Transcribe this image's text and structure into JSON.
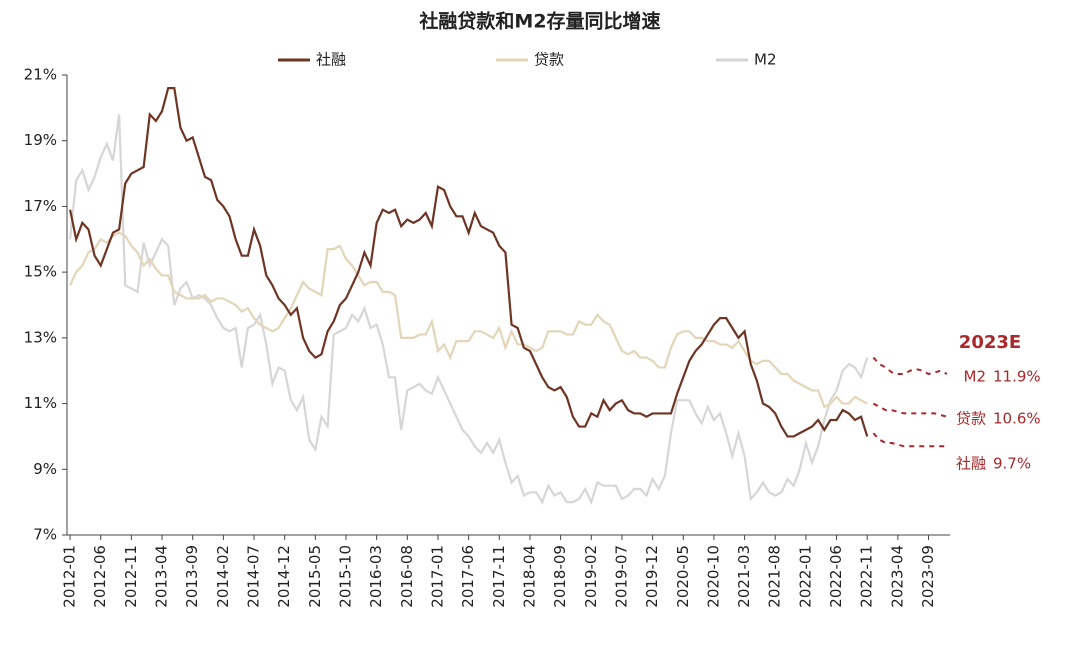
{
  "chart_data": {
    "type": "line",
    "title": "社融贷款和M2存量同比增速",
    "categories": [
      "2012-01",
      null,
      null,
      null,
      null,
      "2012-06",
      null,
      null,
      null,
      null,
      "2012-11",
      null,
      null,
      null,
      null,
      "2013-04",
      null,
      null,
      null,
      null,
      "2013-09",
      null,
      null,
      null,
      null,
      "2014-02",
      null,
      null,
      null,
      null,
      "2014-07",
      null,
      null,
      null,
      null,
      "2014-12",
      null,
      null,
      null,
      null,
      "2015-05",
      null,
      null,
      null,
      null,
      "2015-10",
      null,
      null,
      null,
      null,
      "2016-03",
      null,
      null,
      null,
      null,
      "2016-08",
      null,
      null,
      null,
      null,
      "2017-01",
      null,
      null,
      null,
      null,
      "2017-06",
      null,
      null,
      null,
      null,
      "2017-11",
      null,
      null,
      null,
      null,
      "2018-04",
      null,
      null,
      null,
      null,
      "2018-09",
      null,
      null,
      null,
      null,
      "2019-02",
      null,
      null,
      null,
      null,
      "2019-07",
      null,
      null,
      null,
      null,
      "2019-12",
      null,
      null,
      null,
      null,
      "2020-05",
      null,
      null,
      null,
      null,
      "2020-10",
      null,
      null,
      null,
      null,
      "2021-03",
      null,
      null,
      null,
      null,
      "2021-08",
      null,
      null,
      null,
      null,
      "2022-01",
      null,
      null,
      null,
      null,
      "2022-06",
      null,
      null,
      null,
      null,
      "2022-11",
      null,
      null,
      null,
      null,
      "2023-04",
      null,
      null,
      null,
      null,
      "2023-09",
      null,
      null,
      null
    ],
    "ylim": [
      7,
      21
    ],
    "yticks": [
      {
        "value": 7,
        "label": "7%"
      },
      {
        "value": 9,
        "label": "9%"
      },
      {
        "value": 11,
        "label": "11%"
      },
      {
        "value": 13,
        "label": "13%"
      },
      {
        "value": 15,
        "label": "15%"
      },
      {
        "value": 17,
        "label": "17%"
      },
      {
        "value": 19,
        "label": "19%"
      },
      {
        "value": 21,
        "label": "21%"
      }
    ],
    "forecast_label": "2023E",
    "forecast_color": "#a8282b",
    "series": [
      {
        "name": "社融",
        "color": "#6e3424",
        "end_label": "9.7%",
        "values": [
          16.9,
          16.0,
          16.5,
          16.3,
          15.5,
          15.2,
          15.7,
          16.2,
          16.3,
          17.7,
          18.0,
          18.1,
          18.2,
          19.8,
          19.6,
          19.9,
          20.6,
          20.6,
          19.4,
          19.0,
          19.1,
          18.5,
          17.9,
          17.8,
          17.2,
          17.0,
          16.7,
          16.0,
          15.5,
          15.5,
          16.3,
          15.8,
          14.9,
          14.6,
          14.2,
          14.0,
          13.7,
          13.9,
          13.0,
          12.6,
          12.4,
          12.5,
          13.2,
          13.5,
          14.0,
          14.2,
          14.6,
          15.0,
          15.6,
          15.2,
          16.5,
          16.9,
          16.8,
          16.9,
          16.4,
          16.6,
          16.5,
          16.6,
          16.8,
          16.4,
          17.6,
          17.5,
          17.0,
          16.7,
          16.7,
          16.2,
          16.8,
          16.4,
          16.3,
          16.2,
          15.8,
          15.6,
          13.4,
          13.3,
          12.7,
          12.6,
          12.2,
          11.8,
          11.5,
          11.4,
          11.5,
          11.2,
          10.6,
          10.3,
          10.3,
          10.7,
          10.6,
          11.1,
          10.8,
          11.0,
          11.1,
          10.8,
          10.7,
          10.7,
          10.6,
          10.7,
          10.7,
          10.7,
          10.7,
          11.3,
          11.8,
          12.3,
          12.6,
          12.8,
          13.1,
          13.4,
          13.6,
          13.6,
          13.3,
          13.0,
          13.2,
          12.2,
          11.7,
          11.0,
          10.9,
          10.7,
          10.3,
          10.0,
          10.0,
          10.1,
          10.2,
          10.3,
          10.5,
          10.2,
          10.5,
          10.5,
          10.8,
          10.7,
          10.5,
          10.6,
          10.0,
          null,
          null,
          null,
          null,
          null,
          null,
          null,
          null,
          null,
          null,
          null,
          null,
          null
        ],
        "forecast": [
          null,
          null,
          null,
          null,
          null,
          null,
          null,
          null,
          null,
          null,
          null,
          null,
          null,
          null,
          null,
          null,
          null,
          null,
          null,
          null,
          null,
          null,
          null,
          null,
          null,
          null,
          null,
          null,
          null,
          null,
          null,
          null,
          null,
          null,
          null,
          null,
          null,
          null,
          null,
          null,
          null,
          null,
          null,
          null,
          null,
          null,
          null,
          null,
          null,
          null,
          null,
          null,
          null,
          null,
          null,
          null,
          null,
          null,
          null,
          null,
          null,
          null,
          null,
          null,
          null,
          null,
          null,
          null,
          null,
          null,
          null,
          null,
          null,
          null,
          null,
          null,
          null,
          null,
          null,
          null,
          null,
          null,
          null,
          null,
          null,
          null,
          null,
          null,
          null,
          null,
          null,
          null,
          null,
          null,
          null,
          null,
          null,
          null,
          null,
          null,
          null,
          null,
          null,
          null,
          null,
          null,
          null,
          null,
          null,
          null,
          null,
          null,
          null,
          null,
          null,
          null,
          null,
          null,
          null,
          null,
          null,
          null,
          null,
          null,
          null,
          null,
          null,
          null,
          null,
          null,
          null,
          10.1,
          9.9,
          9.8,
          9.8,
          9.75,
          9.7,
          9.7,
          9.7,
          9.7,
          9.7,
          9.7,
          9.7,
          9.7
        ]
      },
      {
        "name": "贷款",
        "color": "#e3d5b8",
        "end_label": "10.6%",
        "values": [
          14.6,
          15.0,
          15.2,
          15.6,
          15.7,
          16.0,
          15.9,
          16.1,
          16.2,
          16.1,
          15.8,
          15.6,
          15.2,
          15.4,
          15.1,
          14.9,
          14.9,
          14.4,
          14.3,
          14.2,
          14.2,
          14.2,
          14.3,
          14.1,
          14.2,
          14.2,
          14.1,
          14.0,
          13.8,
          13.9,
          13.6,
          13.4,
          13.3,
          13.2,
          13.3,
          13.6,
          13.9,
          14.3,
          14.7,
          14.5,
          14.4,
          14.3,
          15.7,
          15.7,
          15.8,
          15.4,
          15.2,
          14.9,
          14.6,
          14.7,
          14.7,
          14.4,
          14.4,
          14.3,
          13.0,
          13.0,
          13.0,
          13.1,
          13.1,
          13.5,
          12.6,
          12.8,
          12.4,
          12.9,
          12.9,
          12.9,
          13.2,
          13.2,
          13.1,
          13.0,
          13.3,
          12.7,
          13.2,
          12.8,
          12.8,
          12.7,
          12.6,
          12.7,
          13.2,
          13.2,
          13.2,
          13.1,
          13.1,
          13.5,
          13.4,
          13.4,
          13.7,
          13.5,
          13.4,
          13.0,
          12.6,
          12.5,
          12.6,
          12.4,
          12.4,
          12.3,
          12.1,
          12.1,
          12.7,
          13.1,
          13.2,
          13.2,
          13.0,
          13.0,
          12.9,
          12.9,
          12.8,
          12.8,
          12.7,
          12.9,
          12.6,
          12.3,
          12.2,
          12.3,
          12.3,
          12.1,
          11.9,
          11.9,
          11.7,
          11.6,
          11.5,
          11.4,
          11.4,
          10.9,
          11.0,
          11.2,
          11.0,
          11.0,
          11.2,
          11.1,
          11.0,
          null,
          null,
          null,
          null,
          null,
          null,
          null,
          null,
          null,
          null,
          null,
          null,
          null
        ],
        "forecast": [
          null,
          null,
          null,
          null,
          null,
          null,
          null,
          null,
          null,
          null,
          null,
          null,
          null,
          null,
          null,
          null,
          null,
          null,
          null,
          null,
          null,
          null,
          null,
          null,
          null,
          null,
          null,
          null,
          null,
          null,
          null,
          null,
          null,
          null,
          null,
          null,
          null,
          null,
          null,
          null,
          null,
          null,
          null,
          null,
          null,
          null,
          null,
          null,
          null,
          null,
          null,
          null,
          null,
          null,
          null,
          null,
          null,
          null,
          null,
          null,
          null,
          null,
          null,
          null,
          null,
          null,
          null,
          null,
          null,
          null,
          null,
          null,
          null,
          null,
          null,
          null,
          null,
          null,
          null,
          null,
          null,
          null,
          null,
          null,
          null,
          null,
          null,
          null,
          null,
          null,
          null,
          null,
          null,
          null,
          null,
          null,
          null,
          null,
          null,
          null,
          null,
          null,
          null,
          null,
          null,
          null,
          null,
          null,
          null,
          null,
          null,
          null,
          null,
          null,
          null,
          null,
          null,
          null,
          null,
          null,
          null,
          null,
          null,
          null,
          null,
          null,
          null,
          null,
          null,
          null,
          null,
          11.0,
          10.9,
          10.8,
          10.8,
          10.75,
          10.7,
          10.7,
          10.7,
          10.7,
          10.7,
          10.7,
          10.65,
          10.6
        ]
      },
      {
        "name": "M2",
        "color": "#d6d6d6",
        "end_label": "11.9%",
        "values": [
          16.0,
          17.8,
          18.1,
          17.5,
          17.9,
          18.5,
          18.9,
          18.4,
          19.8,
          14.6,
          14.5,
          14.4,
          15.9,
          15.2,
          15.6,
          16.0,
          15.8,
          14.0,
          14.5,
          14.7,
          14.2,
          14.3,
          14.2,
          14.0,
          13.6,
          13.3,
          13.2,
          13.3,
          12.1,
          13.3,
          13.4,
          13.7,
          12.8,
          11.6,
          12.1,
          12.0,
          11.1,
          10.8,
          11.2,
          9.9,
          9.6,
          10.6,
          10.3,
          13.1,
          13.2,
          13.3,
          13.7,
          13.5,
          13.9,
          13.3,
          13.4,
          12.8,
          11.8,
          11.8,
          10.2,
          11.4,
          11.5,
          11.6,
          11.4,
          11.3,
          11.8,
          11.4,
          11.0,
          10.6,
          10.2,
          10.0,
          9.7,
          9.5,
          9.8,
          9.5,
          9.9,
          9.2,
          8.6,
          8.8,
          8.2,
          8.3,
          8.3,
          8.0,
          8.5,
          8.2,
          8.3,
          8.0,
          8.0,
          8.1,
          8.4,
          8.0,
          8.6,
          8.5,
          8.5,
          8.5,
          8.1,
          8.2,
          8.4,
          8.4,
          8.2,
          8.7,
          8.4,
          8.8,
          10.1,
          11.1,
          11.1,
          11.1,
          10.7,
          10.4,
          10.9,
          10.5,
          10.7,
          10.1,
          9.4,
          10.1,
          9.4,
          8.1,
          8.3,
          8.6,
          8.3,
          8.2,
          8.3,
          8.7,
          8.5,
          9.0,
          9.8,
          9.2,
          9.7,
          10.5,
          11.1,
          11.4,
          12.0,
          12.2,
          12.1,
          11.8,
          12.4,
          null,
          null,
          null,
          null,
          null,
          null,
          null,
          null,
          null,
          null,
          null,
          null,
          null
        ],
        "forecast": [
          null,
          null,
          null,
          null,
          null,
          null,
          null,
          null,
          null,
          null,
          null,
          null,
          null,
          null,
          null,
          null,
          null,
          null,
          null,
          null,
          null,
          null,
          null,
          null,
          null,
          null,
          null,
          null,
          null,
          null,
          null,
          null,
          null,
          null,
          null,
          null,
          null,
          null,
          null,
          null,
          null,
          null,
          null,
          null,
          null,
          null,
          null,
          null,
          null,
          null,
          null,
          null,
          null,
          null,
          null,
          null,
          null,
          null,
          null,
          null,
          null,
          null,
          null,
          null,
          null,
          null,
          null,
          null,
          null,
          null,
          null,
          null,
          null,
          null,
          null,
          null,
          null,
          null,
          null,
          null,
          null,
          null,
          null,
          null,
          null,
          null,
          null,
          null,
          null,
          null,
          null,
          null,
          null,
          null,
          null,
          null,
          null,
          null,
          null,
          null,
          null,
          null,
          null,
          null,
          null,
          null,
          null,
          null,
          null,
          null,
          null,
          null,
          null,
          null,
          null,
          null,
          null,
          null,
          null,
          null,
          null,
          null,
          null,
          null,
          null,
          null,
          null,
          null,
          null,
          null,
          null,
          12.4,
          12.2,
          12.1,
          11.95,
          11.9,
          11.9,
          12.0,
          12.05,
          12.0,
          11.9,
          11.95,
          12.0,
          11.9
        ]
      }
    ]
  }
}
